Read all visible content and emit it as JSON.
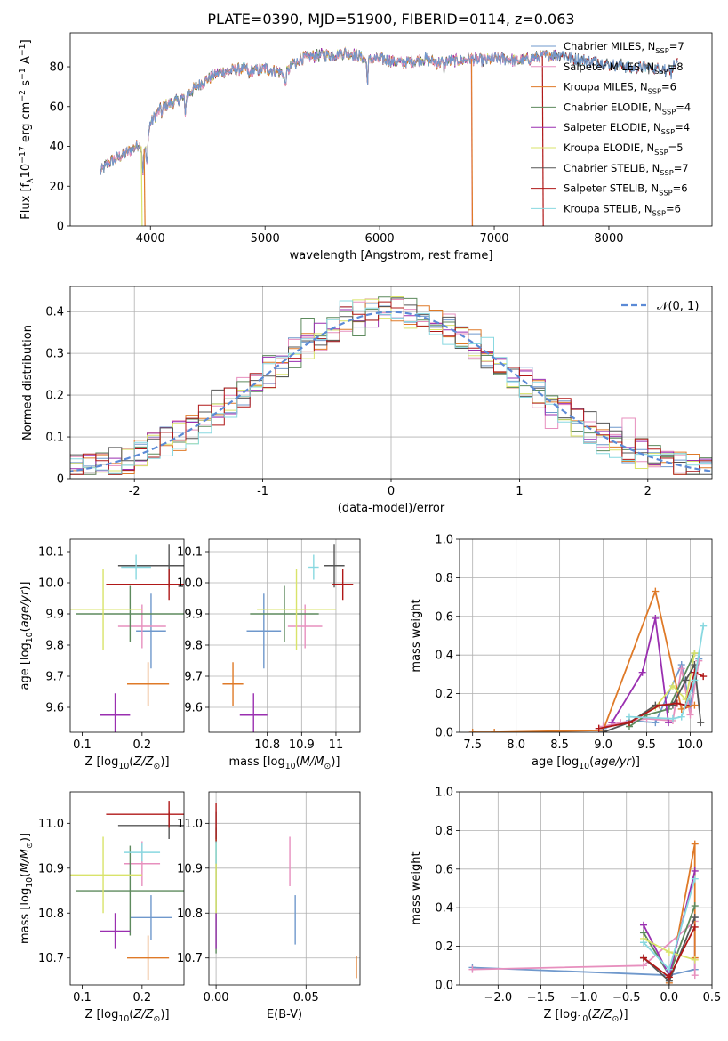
{
  "figure": {
    "title": "PLATE=0390, MJD=51900, FIBERID=0114, z=0.063"
  },
  "colors": {
    "Chabrier MILES": "#6f98cc",
    "Salpeter MILES": "#e78fbe",
    "Kroupa MILES": "#df7a28",
    "Chabrier ELODIE": "#5d8a5d",
    "Salpeter ELODIE": "#9a2fb0",
    "Kroupa ELODIE": "#d9e36a",
    "Chabrier STELIB": "#555555",
    "Salpeter STELIB": "#b01818",
    "Kroupa STELIB": "#88d8e0",
    "gauss": "#5b8ad6"
  },
  "chart_data": [
    {
      "id": "spectrum",
      "type": "line",
      "xlabel": "wavelength [Angstrom, rest frame]",
      "ylabel": "Flux [f_λ 10^-17 erg cm^-2 s^-1 A^-1]",
      "xlim": [
        3300,
        8900
      ],
      "ylim": [
        0,
        97
      ],
      "xticks": [
        4000,
        5000,
        6000,
        7000,
        8000
      ],
      "yticks": [
        0,
        20,
        40,
        60,
        80
      ],
      "grid": false,
      "legend_position": "top-right",
      "legend": [
        {
          "base": "Chabrier MILES, N",
          "sub": "SSP",
          "tail": "=7"
        },
        {
          "base": "Salpeter MILES, N",
          "sub": "SSP",
          "tail": "=8"
        },
        {
          "base": "Kroupa MILES, N",
          "sub": "SSP",
          "tail": "=6"
        },
        {
          "base": "Chabrier ELODIE, N",
          "sub": "SSP",
          "tail": "=4"
        },
        {
          "base": "Salpeter ELODIE, N",
          "sub": "SSP",
          "tail": "=4"
        },
        {
          "base": "Kroupa ELODIE, N",
          "sub": "SSP",
          "tail": "=5"
        },
        {
          "base": "Chabrier STELIB, N",
          "sub": "SSP",
          "tail": "=7"
        },
        {
          "base": "Salpeter STELIB, N",
          "sub": "SSP",
          "tail": "=6"
        },
        {
          "base": "Kroupa STELIB, N",
          "sub": "SSP",
          "tail": "=6"
        }
      ],
      "continuum": {
        "wavelength": [
          3560,
          3620,
          3700,
          3800,
          3900,
          3960,
          4000,
          4050,
          4100,
          4200,
          4300,
          4400,
          4500,
          4600,
          4700,
          4800,
          4900,
          5000,
          5100,
          5180,
          5250,
          5300,
          5400,
          5500,
          5600,
          5700,
          5800,
          5890,
          5950,
          6000,
          6100,
          6200,
          6300,
          6400,
          6500,
          6600,
          6700,
          6800,
          6900,
          7000,
          7100,
          7200,
          7300,
          7400,
          7500,
          7600,
          7700,
          7800,
          7900,
          8000,
          8100,
          8200,
          8300,
          8400,
          8500,
          8600
        ],
        "flux": [
          27,
          31,
          34,
          37,
          41,
          38,
          52,
          56,
          60,
          62,
          65,
          70,
          74,
          77,
          78,
          79,
          78,
          79,
          78,
          76,
          82,
          84,
          85,
          86,
          86,
          87,
          86,
          83,
          84,
          84,
          83,
          82,
          83,
          84,
          82,
          83,
          83,
          84,
          83,
          84,
          84,
          83,
          84,
          85,
          86,
          86,
          84,
          83,
          83,
          81,
          81,
          79,
          80,
          79,
          80,
          81
        ]
      },
      "absorption_features": [
        {
          "wavelength": 3934,
          "depth": 12
        },
        {
          "wavelength": 3969,
          "depth": 10
        },
        {
          "wavelength": 4101,
          "depth": 4
        },
        {
          "wavelength": 4304,
          "depth": 8
        },
        {
          "wavelength": 4861,
          "depth": 4
        },
        {
          "wavelength": 5175,
          "depth": 6
        },
        {
          "wavelength": 5270,
          "depth": 3
        },
        {
          "wavelength": 5893,
          "depth": 10
        },
        {
          "wavelength": 6563,
          "depth": 4
        },
        {
          "wavelength": 8498,
          "depth": 4
        },
        {
          "wavelength": 8542,
          "depth": 5
        },
        {
          "wavelength": 8662,
          "depth": 4
        }
      ],
      "model_dropouts": [
        {
          "label": "Kroupa ELODIE",
          "wavelength": 3920
        },
        {
          "label": "Kroupa MILES",
          "wavelength": 3945
        },
        {
          "label": "Salpeter MILES",
          "wavelength": 6800
        },
        {
          "label": "Kroupa MILES",
          "wavelength": 6802
        },
        {
          "label": "Salpeter STELIB",
          "wavelength": 7420
        }
      ]
    },
    {
      "id": "residuals",
      "type": "line",
      "xlabel": "(data-model)/error",
      "ylabel": "Normed distribution",
      "xlim": [
        -2.5,
        2.5
      ],
      "ylim": [
        0,
        0.46
      ],
      "xticks": [
        -2,
        -1,
        0,
        1,
        2
      ],
      "yticks": [
        0.0,
        0.1,
        0.2,
        0.3,
        0.4
      ],
      "grid": true,
      "legend_position": "top-right",
      "legend": [
        {
          "label": "𝒩(0, 1)",
          "style": "dashed"
        }
      ],
      "gaussian": {
        "mean": 0,
        "sigma": 1
      }
    },
    {
      "id": "age-vs-Z",
      "type": "scatter",
      "xlabel": "Z [log10(Z/Z⊙)]",
      "ylabel": "age [log10(age/yr)]",
      "xlim": [
        0.08,
        0.27
      ],
      "ylim": [
        9.52,
        10.14
      ],
      "xticks": [
        0.1,
        0.2
      ],
      "yticks": [
        9.6,
        9.7,
        9.8,
        9.9,
        10.0,
        10.1
      ],
      "points": [
        {
          "model": "Chabrier MILES",
          "x": 0.215,
          "y": 9.845,
          "xerr": 0.025,
          "yerr": 0.12
        },
        {
          "model": "Salpeter MILES",
          "x": 0.2,
          "y": 9.86,
          "xerr": 0.04,
          "yerr": 0.07
        },
        {
          "model": "Kroupa MILES",
          "x": 0.21,
          "y": 9.675,
          "xerr": 0.035,
          "yerr": 0.07
        },
        {
          "model": "Chabrier ELODIE",
          "x": 0.18,
          "y": 9.9,
          "xerr": 0.09,
          "yerr": 0.09
        },
        {
          "model": "Salpeter ELODIE",
          "x": 0.155,
          "y": 9.575,
          "xerr": 0.025,
          "yerr": 0.07
        },
        {
          "model": "Kroupa ELODIE",
          "x": 0.135,
          "y": 9.915,
          "xerr": 0.065,
          "yerr": 0.13
        },
        {
          "model": "Chabrier STELIB",
          "x": 0.245,
          "y": 10.055,
          "xerr": 0.085,
          "yerr": 0.07
        },
        {
          "model": "Salpeter STELIB",
          "x": 0.245,
          "y": 9.995,
          "xerr": 0.105,
          "yerr": 0.05
        },
        {
          "model": "Kroupa STELIB",
          "x": 0.19,
          "y": 10.05,
          "xerr": 0.025,
          "yerr": 0.04
        }
      ]
    },
    {
      "id": "age-vs-mass",
      "type": "scatter",
      "xlabel": "mass [log10(M/M⊙)]",
      "ylabel": "",
      "xlim": [
        10.63,
        11.07
      ],
      "ylim": [
        9.52,
        10.14
      ],
      "xticks": [
        10.8,
        10.9,
        11.0
      ],
      "yticks": [
        9.6,
        9.7,
        9.8,
        9.9,
        10.0,
        10.1
      ],
      "points": [
        {
          "model": "Chabrier MILES",
          "x": 10.79,
          "y": 9.845,
          "xerr": 0.05,
          "yerr": 0.12
        },
        {
          "model": "Salpeter MILES",
          "x": 10.91,
          "y": 9.86,
          "xerr": 0.05,
          "yerr": 0.07
        },
        {
          "model": "Kroupa MILES",
          "x": 10.7,
          "y": 9.675,
          "xerr": 0.03,
          "yerr": 0.07
        },
        {
          "model": "Chabrier ELODIE",
          "x": 10.85,
          "y": 9.9,
          "xerr": 0.1,
          "yerr": 0.09
        },
        {
          "model": "Salpeter ELODIE",
          "x": 10.76,
          "y": 9.575,
          "xerr": 0.04,
          "yerr": 0.07
        },
        {
          "model": "Kroupa ELODIE",
          "x": 10.885,
          "y": 9.915,
          "xerr": 0.115,
          "yerr": 0.13
        },
        {
          "model": "Chabrier STELIB",
          "x": 10.995,
          "y": 10.055,
          "xerr": 0.03,
          "yerr": 0.07
        },
        {
          "model": "Salpeter STELIB",
          "x": 11.02,
          "y": 9.995,
          "xerr": 0.03,
          "yerr": 0.05
        },
        {
          "model": "Kroupa STELIB",
          "x": 10.935,
          "y": 10.05,
          "xerr": 0.015,
          "yerr": 0.04
        }
      ]
    },
    {
      "id": "mass-vs-Z",
      "type": "scatter",
      "xlabel": "Z [log10(Z/Z⊙)]",
      "ylabel": "mass [log10(M/M⊙)]",
      "xlim": [
        0.08,
        0.27
      ],
      "ylim": [
        10.64,
        11.07
      ],
      "xticks": [
        0.1,
        0.2
      ],
      "yticks": [
        10.7,
        10.8,
        10.9,
        11.0
      ],
      "points": [
        {
          "model": "Chabrier MILES",
          "x": 0.215,
          "y": 10.79,
          "xerr": 0.035,
          "yerr": 0.05
        },
        {
          "model": "Salpeter MILES",
          "x": 0.2,
          "y": 10.91,
          "xerr": 0.03,
          "yerr": 0.05
        },
        {
          "model": "Kroupa MILES",
          "x": 0.21,
          "y": 10.7,
          "xerr": 0.035,
          "yerr": 0.05
        },
        {
          "model": "Chabrier ELODIE",
          "x": 0.18,
          "y": 10.85,
          "xerr": 0.09,
          "yerr": 0.1
        },
        {
          "model": "Salpeter ELODIE",
          "x": 0.155,
          "y": 10.76,
          "xerr": 0.025,
          "yerr": 0.04
        },
        {
          "model": "Kroupa ELODIE",
          "x": 0.135,
          "y": 10.885,
          "xerr": 0.065,
          "yerr": 0.085
        },
        {
          "model": "Chabrier STELIB",
          "x": 0.245,
          "y": 10.995,
          "xerr": 0.085,
          "yerr": 0.03
        },
        {
          "model": "Salpeter STELIB",
          "x": 0.245,
          "y": 11.02,
          "xerr": 0.105,
          "yerr": 0.03
        },
        {
          "model": "Kroupa STELIB",
          "x": 0.2,
          "y": 10.935,
          "xerr": 0.03,
          "yerr": 0.02
        }
      ]
    },
    {
      "id": "mass-vs-ebv",
      "type": "scatter",
      "xlabel": "E(B-V)",
      "ylabel": "",
      "xlim": [
        -0.004,
        0.08
      ],
      "ylim": [
        10.64,
        11.07
      ],
      "xticks": [
        0.0,
        0.05
      ],
      "tick_text": [
        "0.00",
        "0.05"
      ],
      "yticks": [
        10.7,
        10.8,
        10.9,
        11.0
      ],
      "points": [
        {
          "model": "Chabrier MILES",
          "x": 0.044,
          "y": 10.785,
          "xerr": 0,
          "yerr": 0.055
        },
        {
          "model": "Salpeter MILES",
          "x": 0.041,
          "y": 10.915,
          "xerr": 0,
          "yerr": 0.055
        },
        {
          "model": "Kroupa MILES",
          "x": 0.078,
          "y": 10.68,
          "xerr": 0,
          "yerr": 0.025
        },
        {
          "model": "Chabrier ELODIE",
          "x": 0.0,
          "y": 10.85,
          "xerr": 0,
          "yerr": 0.14
        },
        {
          "model": "Salpeter ELODIE",
          "x": 0.0,
          "y": 10.76,
          "xerr": 0,
          "yerr": 0.04
        },
        {
          "model": "Kroupa ELODIE",
          "x": 0.0,
          "y": 10.885,
          "xerr": 0,
          "yerr": 0.085
        },
        {
          "model": "Chabrier STELIB",
          "x": 0.0,
          "y": 10.995,
          "xerr": 0,
          "yerr": 0.03
        },
        {
          "model": "Salpeter STELIB",
          "x": 0.0,
          "y": 11.0,
          "xerr": 0,
          "yerr": 0.045
        },
        {
          "model": "Kroupa STELIB",
          "x": 0.0,
          "y": 10.935,
          "xerr": 0,
          "yerr": 0.025
        }
      ]
    },
    {
      "id": "weight-vs-age",
      "type": "line",
      "xlabel": "age [log10(age/yr)]",
      "ylabel": "mass weight",
      "xlim": [
        7.35,
        10.25
      ],
      "ylim": [
        0,
        1
      ],
      "xticks": [
        7.5,
        8.0,
        8.5,
        9.0,
        9.5,
        10.0
      ],
      "tick_text": [
        "7.5",
        "8.0",
        "8.5",
        "9.0",
        "9.5",
        "10.0"
      ],
      "yticks": [
        0.0,
        0.2,
        0.4,
        0.6,
        0.8,
        1.0
      ],
      "grid": true,
      "series": [
        {
          "model": "Chabrier MILES",
          "x": [
            9.0,
            9.3,
            9.6,
            9.9,
            10.0,
            10.1
          ],
          "y": [
            0.02,
            0.06,
            0.05,
            0.35,
            0.14,
            0.38
          ]
        },
        {
          "model": "Salpeter MILES",
          "x": [
            9.0,
            9.2,
            9.5,
            9.8,
            9.9,
            10.0,
            10.1
          ],
          "y": [
            0.03,
            0.05,
            0.07,
            0.06,
            0.33,
            0.09,
            0.37
          ]
        },
        {
          "model": "Kroupa MILES",
          "x": [
            7.5,
            7.75,
            9.0,
            9.6,
            9.9,
            10.05
          ],
          "y": [
            0.0,
            0.0,
            0.01,
            0.73,
            0.12,
            0.14
          ]
        },
        {
          "model": "Chabrier ELODIE",
          "x": [
            9.3,
            9.5,
            9.75,
            10.05
          ],
          "y": [
            0.03,
            0.09,
            0.12,
            0.41
          ]
        },
        {
          "model": "Salpeter ELODIE",
          "x": [
            9.1,
            9.45,
            9.6,
            9.75
          ],
          "y": [
            0.05,
            0.31,
            0.59,
            0.05
          ]
        },
        {
          "model": "Kroupa ELODIE",
          "x": [
            9.3,
            9.6,
            9.8,
            9.95,
            10.05
          ],
          "y": [
            0.05,
            0.13,
            0.24,
            0.17,
            0.41
          ]
        },
        {
          "model": "Chabrier STELIB",
          "x": [
            9.0,
            9.3,
            9.6,
            9.8,
            9.95,
            10.05,
            10.12
          ],
          "y": [
            0.0,
            0.05,
            0.14,
            0.14,
            0.27,
            0.35,
            0.05
          ]
        },
        {
          "model": "Salpeter STELIB",
          "x": [
            8.95,
            9.3,
            9.65,
            9.85,
            9.95,
            10.05,
            10.15
          ],
          "y": [
            0.02,
            0.05,
            0.14,
            0.15,
            0.14,
            0.31,
            0.29
          ]
        },
        {
          "model": "Kroupa STELIB",
          "x": [
            9.3,
            9.8,
            9.9,
            10.05,
            10.15
          ],
          "y": [
            0.08,
            0.07,
            0.08,
            0.27,
            0.55
          ]
        }
      ]
    },
    {
      "id": "weight-vs-Z",
      "type": "line",
      "xlabel": "Z [log10(Z/Z⊙)]",
      "ylabel": "mass weight",
      "xlim": [
        -2.45,
        0.5
      ],
      "ylim": [
        0,
        1
      ],
      "xticks": [
        -2.0,
        -1.5,
        -1.0,
        -0.5,
        0.0,
        0.5
      ],
      "tick_text": [
        "−2.0",
        "−1.5",
        "−1.0",
        "−0.5",
        "0.0",
        "0.5"
      ],
      "yticks": [
        0.0,
        0.2,
        0.4,
        0.6,
        0.8,
        1.0
      ],
      "grid": true,
      "series": [
        {
          "model": "Chabrier MILES",
          "x": [
            -2.3,
            0.0,
            0.3,
            0.3
          ],
          "y": [
            0.09,
            0.05,
            0.08,
            0.35
          ]
        },
        {
          "model": "Salpeter MILES",
          "x": [
            -2.3,
            -0.3,
            0.3,
            0.3
          ],
          "y": [
            0.08,
            0.1,
            0.33,
            0.05
          ]
        },
        {
          "model": "Kroupa MILES",
          "x": [
            0.0,
            0.3,
            0.3
          ],
          "y": [
            0.01,
            0.73,
            0.14
          ]
        },
        {
          "model": "Chabrier ELODIE",
          "x": [
            -0.3,
            0.0,
            0.3
          ],
          "y": [
            0.27,
            0.05,
            0.41
          ]
        },
        {
          "model": "Salpeter ELODIE",
          "x": [
            -0.3,
            0.0,
            0.3
          ],
          "y": [
            0.31,
            0.05,
            0.59
          ]
        },
        {
          "model": "Kroupa ELODIE",
          "x": [
            -0.3,
            0.0,
            0.3
          ],
          "y": [
            0.24,
            0.17,
            0.13
          ]
        },
        {
          "model": "Chabrier STELIB",
          "x": [
            -0.3,
            0.0,
            0.3
          ],
          "y": [
            0.14,
            0.02,
            0.35
          ]
        },
        {
          "model": "Salpeter STELIB",
          "x": [
            -0.3,
            0.0,
            0.3
          ],
          "y": [
            0.14,
            0.04,
            0.3
          ]
        },
        {
          "model": "Kroupa STELIB",
          "x": [
            -0.3,
            0.0,
            0.3
          ],
          "y": [
            0.22,
            0.08,
            0.55
          ]
        }
      ]
    }
  ]
}
